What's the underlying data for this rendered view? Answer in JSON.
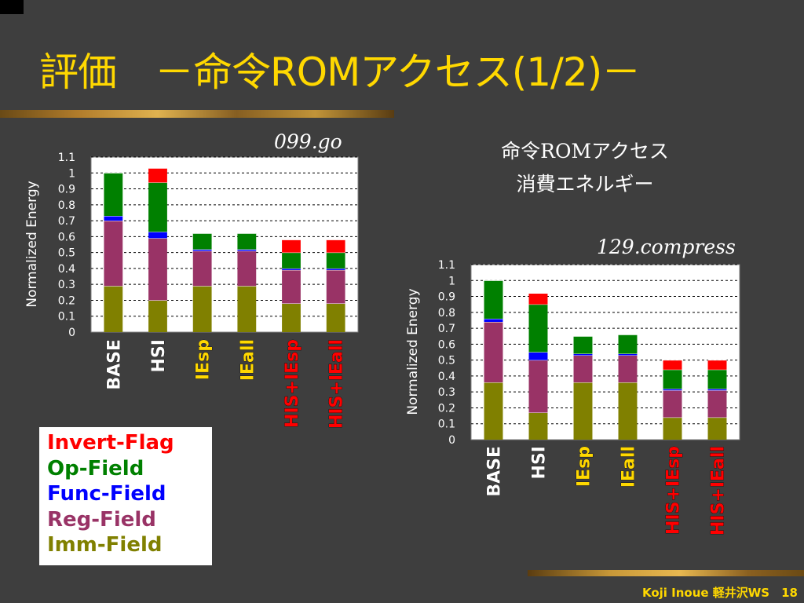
{
  "slide": {
    "title": "評価　－命令ROMアクセス(1/2)－",
    "footer": "Koji Inoue 軽井沢WS　18",
    "note_line1": "命令ROMアクセス",
    "note_line2": "消費エネルギー"
  },
  "legend": [
    {
      "label": "Invert-Flag",
      "color": "#ff0000"
    },
    {
      "label": "Op-Field",
      "color": "#008000"
    },
    {
      "label": "Func-Field",
      "color": "#0000ff"
    },
    {
      "label": "Reg-Field",
      "color": "#993366"
    },
    {
      "label": "Imm-Field",
      "color": "#808000"
    }
  ],
  "colors": {
    "Imm-Field": "#808000",
    "Reg-Field": "#993366",
    "Func-Field": "#0000ff",
    "Op-Field": "#008000",
    "Invert-Flag": "#ff0000",
    "label_white": "#ffffff",
    "label_yellow": "#ffd800",
    "label_red": "#ff0000"
  },
  "chart_data": [
    {
      "type": "bar",
      "stacked": true,
      "title": "099.go",
      "ylabel": "Normalized Energy",
      "ylim": [
        0,
        1.1
      ],
      "yticks": [
        "0",
        "0.1",
        "0.2",
        "0.3",
        "0.4",
        "0.5",
        "0.6",
        "0.7",
        "0.8",
        "0.9",
        "1",
        "1.1"
      ],
      "grid": true,
      "categories": [
        "BASE",
        "HSI",
        "IEsp",
        "IEall",
        "HIS+IEsp",
        "HIS+IEall"
      ],
      "category_colors": [
        "label_white",
        "label_white",
        "label_yellow",
        "label_yellow",
        "label_red",
        "label_red"
      ],
      "series": [
        {
          "name": "Imm-Field",
          "values": [
            0.29,
            0.2,
            0.29,
            0.29,
            0.18,
            0.18
          ]
        },
        {
          "name": "Reg-Field",
          "values": [
            0.41,
            0.39,
            0.22,
            0.22,
            0.21,
            0.21
          ]
        },
        {
          "name": "Func-Field",
          "values": [
            0.03,
            0.04,
            0.01,
            0.01,
            0.01,
            0.01
          ]
        },
        {
          "name": "Op-Field",
          "values": [
            0.27,
            0.31,
            0.1,
            0.1,
            0.1,
            0.1
          ]
        },
        {
          "name": "Invert-Flag",
          "values": [
            0,
            0.09,
            0,
            0,
            0.08,
            0.08
          ]
        }
      ]
    },
    {
      "type": "bar",
      "stacked": true,
      "title": "129.compress",
      "ylabel": "Normalized Energy",
      "ylim": [
        0,
        1.1
      ],
      "yticks": [
        "0",
        "0.1",
        "0.2",
        "0.3",
        "0.4",
        "0.5",
        "0.6",
        "0.7",
        "0.8",
        "0.9",
        "1",
        "1.1"
      ],
      "grid": true,
      "categories": [
        "BASE",
        "HSI",
        "IEsp",
        "IEall",
        "HIS+IEsp",
        "HIS+IEall"
      ],
      "category_colors": [
        "label_white",
        "label_white",
        "label_yellow",
        "label_yellow",
        "label_red",
        "label_red"
      ],
      "series": [
        {
          "name": "Imm-Field",
          "values": [
            0.36,
            0.17,
            0.36,
            0.36,
            0.14,
            0.14
          ]
        },
        {
          "name": "Reg-Field",
          "values": [
            0.38,
            0.33,
            0.17,
            0.17,
            0.17,
            0.17
          ]
        },
        {
          "name": "Func-Field",
          "values": [
            0.02,
            0.05,
            0.01,
            0.01,
            0.01,
            0.01
          ]
        },
        {
          "name": "Op-Field",
          "values": [
            0.24,
            0.3,
            0.11,
            0.12,
            0.12,
            0.12
          ]
        },
        {
          "name": "Invert-Flag",
          "values": [
            0,
            0.07,
            0,
            0,
            0.06,
            0.06
          ]
        }
      ]
    }
  ]
}
